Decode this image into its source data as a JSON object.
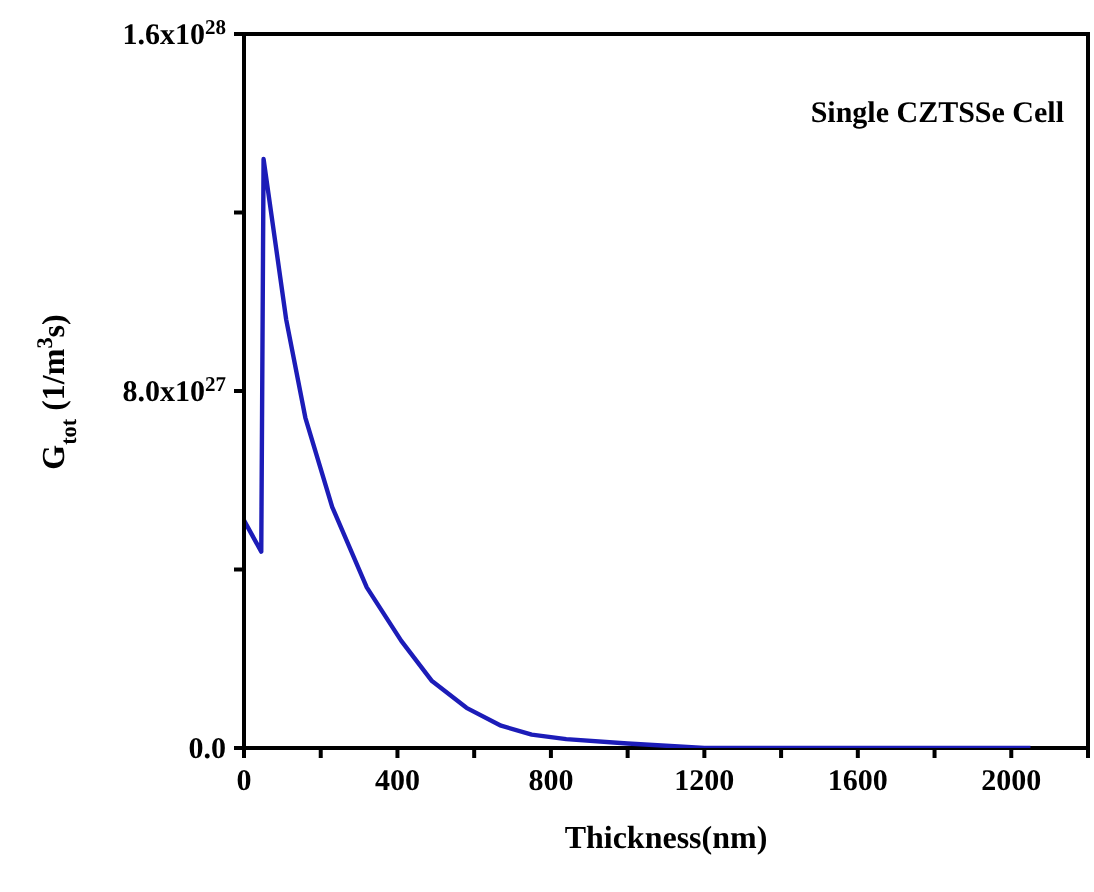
{
  "chart_data": {
    "type": "line",
    "xlabel": "Thickness(nm)",
    "ylabel": "G$_{tot}$ (1/m$^{3}$s)",
    "annotations": [
      "Single CZTSSe Cell"
    ],
    "x": [
      0,
      45,
      51,
      110,
      160,
      230,
      320,
      410,
      490,
      580,
      670,
      750,
      840,
      1000,
      1200,
      1400,
      1700,
      2050
    ],
    "series": [
      {
        "color": "#1c1cb8",
        "values": [
          5.1e+27,
          4.4e+27,
          1.32e+28,
          9.6e+27,
          7.4e+27,
          5.4e+27,
          3.6e+27,
          2.4e+27,
          1.5e+27,
          9e+26,
          5e+26,
          3e+26,
          2e+26,
          1e+26,
          0,
          0,
          0,
          0
        ]
      }
    ],
    "xlim": [
      0,
      2200
    ],
    "xticks": [
      0,
      {
        "value": 200,
        "label": null
      },
      400,
      {
        "value": 600,
        "label": null
      },
      800,
      {
        "value": 1000,
        "label": null
      },
      1200,
      {
        "value": 1400,
        "label": null
      },
      1600,
      {
        "value": 1800,
        "label": null
      },
      2000,
      {
        "value": 2200,
        "label": null
      }
    ],
    "ylim": [
      0,
      1.6e+28
    ],
    "yticks": [
      {
        "value": 0,
        "label": "0.0"
      },
      {
        "value": 4e+27,
        "label": null
      },
      {
        "value": 8e+27,
        "label": "8.0x10$^{27}$"
      },
      {
        "value": 1.2e+28,
        "label": null
      },
      {
        "value": 1.6e+28,
        "label": "1.6x10$^{28}$"
      }
    ],
    "grid": false,
    "legend": false
  }
}
